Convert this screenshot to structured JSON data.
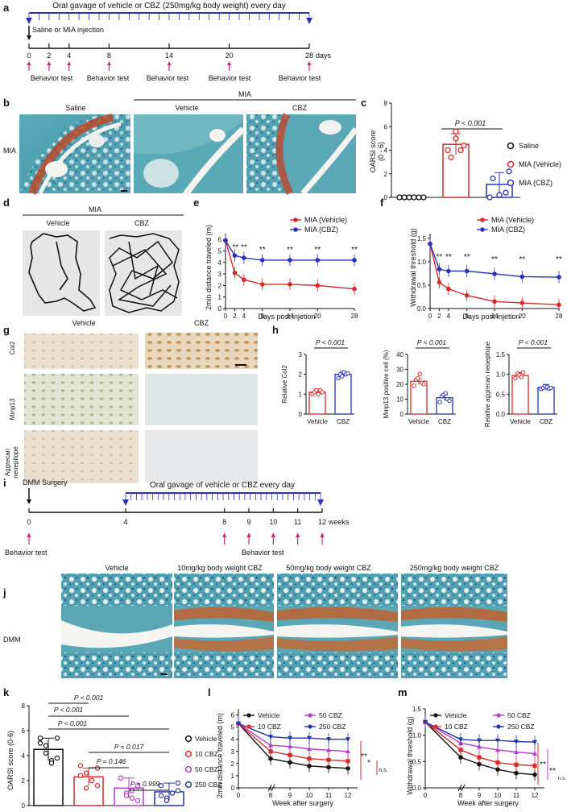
{
  "panels": {
    "a": "a",
    "b": "b",
    "c": "c",
    "d": "d",
    "e": "e",
    "f": "f",
    "g": "g",
    "h": "h",
    "i": "i",
    "j": "j",
    "k": "k",
    "l": "l",
    "m": "m"
  },
  "a": {
    "gavage": "Oral gavage  of vehicle or CBZ (250mg/kg body weight) every day",
    "injection": "Saline or MIA injection",
    "days": [
      "0",
      "2",
      "4",
      "8",
      "14",
      "20",
      "28"
    ],
    "unit": "days",
    "behavior": [
      "Behavior test",
      "Behavior test",
      "Behavior test",
      "Behavior test",
      "Behavior test"
    ]
  },
  "b": {
    "mia": "MIA",
    "saline": "Saline",
    "vehicle": "Vehicle",
    "cbz": "CBZ",
    "row": "MIA"
  },
  "c": {
    "ylabel": "OARSI score",
    "ylabel2": "(0 - 6)",
    "yticks": [
      "0",
      "2",
      "4",
      "6",
      "8"
    ],
    "pval": "P < 0.001",
    "legend": [
      "Saline",
      "MIA (Vehicle)",
      "MIA (CBZ)"
    ],
    "chart_data": {
      "type": "bar",
      "categories": [
        "Saline",
        "MIA (Vehicle)",
        "MIA (CBZ)"
      ],
      "values": [
        0,
        4.5,
        1.1
      ],
      "errors": [
        0,
        0.9,
        1.0
      ],
      "ylim": [
        0,
        8
      ]
    }
  },
  "d": {
    "title": "MIA",
    "vehicle": "Vehicle",
    "cbz": "CBZ"
  },
  "e": {
    "ylabel": "2min distance traveled  (m)",
    "xlabel": "Days post injetion",
    "yticks": [
      "0",
      "1",
      "2",
      "3",
      "4",
      "5",
      "6"
    ],
    "xticks": [
      "0",
      "2",
      "4",
      "8",
      "14",
      "20",
      "28"
    ],
    "legend": [
      "MIA (Vehicle)",
      "MIA (CBZ)"
    ],
    "sig": [
      "**",
      "**",
      "**",
      "**",
      "**",
      "**"
    ],
    "chart_data": {
      "type": "line",
      "x": [
        0,
        2,
        4,
        8,
        14,
        20,
        28
      ],
      "series": [
        {
          "name": "MIA (Vehicle)",
          "values": [
            5.9,
            3.1,
            2.5,
            2.1,
            2.1,
            2.0,
            1.7
          ]
        },
        {
          "name": "MIA (CBZ)",
          "values": [
            5.9,
            4.6,
            4.4,
            4.2,
            4.2,
            4.2,
            4.2
          ]
        }
      ],
      "ylim": [
        0,
        6.5
      ]
    }
  },
  "f": {
    "ylabel": "Withdrawal threshold (g)",
    "xlabel": "Days post injetion",
    "yticks": [
      "0.0",
      "0.5",
      "1.0",
      "1.5"
    ],
    "xticks": [
      "0",
      "2",
      "4",
      "8",
      "14",
      "20",
      "28"
    ],
    "legend": [
      "MIA (Vehicle)",
      "MIA (CBZ)"
    ],
    "sig": [
      "**",
      "**",
      "**",
      "**",
      "**",
      "**"
    ],
    "chart_data": {
      "type": "line",
      "x": [
        0,
        2,
        4,
        8,
        14,
        20,
        28
      ],
      "series": [
        {
          "name": "MIA (Vehicle)",
          "values": [
            1.38,
            0.56,
            0.42,
            0.28,
            0.15,
            0.12,
            0.08
          ]
        },
        {
          "name": "MIA (CBZ)",
          "values": [
            1.38,
            0.84,
            0.8,
            0.8,
            0.74,
            0.68,
            0.67
          ]
        }
      ],
      "ylim": [
        0,
        1.6
      ]
    }
  },
  "g": {
    "vehicle": "Vehicle",
    "cbz": "CBZ",
    "rows": [
      "Col2",
      "Mmp13",
      "Aggrecan",
      "neoepitope"
    ]
  },
  "h": {
    "plots": [
      {
        "ylabel": "Relative Col2",
        "yticks": [
          "0",
          "1",
          "2",
          "3"
        ],
        "pval": "P < 0.001",
        "xcats": [
          "Vehicle",
          "CBZ"
        ],
        "chart_data": {
          "type": "bar",
          "categories": [
            "Vehicle",
            "CBZ"
          ],
          "values": [
            1.1,
            2.0
          ],
          "ylim": [
            0,
            3
          ]
        }
      },
      {
        "ylabel": "Mmp13 positive cell (%)",
        "yticks": [
          "0",
          "10",
          "20",
          "30",
          "40"
        ],
        "pval": "P < 0.001",
        "xcats": [
          "Vehicle",
          "CBZ"
        ],
        "chart_data": {
          "type": "bar",
          "categories": [
            "Vehicle",
            "CBZ"
          ],
          "values": [
            22,
            11
          ],
          "ylim": [
            0,
            40
          ]
        }
      },
      {
        "ylabel": "Relative aggrecan neoepitope",
        "yticks": [
          "0.0",
          "0.5",
          "1.0",
          "1.5"
        ],
        "pval": "P < 0.001",
        "xcats": [
          "Vehicle",
          "CBZ"
        ],
        "chart_data": {
          "type": "bar",
          "categories": [
            "Vehicle",
            "CBZ"
          ],
          "values": [
            0.97,
            0.67
          ],
          "ylim": [
            0,
            1.5
          ]
        }
      }
    ]
  },
  "i": {
    "surgery": "DMM Surgery",
    "gavage": "Oral gavage of vehicle or CBZ every day",
    "weeks": [
      "0",
      "4",
      "8",
      "9",
      "10",
      "11",
      "12"
    ],
    "unit": "weeks",
    "behavior": [
      "Behavior test",
      "Behavior test"
    ]
  },
  "j": {
    "cols": [
      "Vehicle",
      "10mg/kg body weight CBZ",
      "50mg/kg body weight CBZ",
      "250mg/kg body weight CBZ"
    ],
    "row": "DMM"
  },
  "k": {
    "ylabel": "OARSI score (0-6)",
    "yticks": [
      "0",
      "2",
      "4",
      "6",
      "8"
    ],
    "pvals": [
      "P < 0.001",
      "P < 0.001",
      "P < 0.001",
      "P = 0.017",
      "P = 0.146",
      "P > 0.999"
    ],
    "legend": [
      "Vehicle",
      "10 CBZ",
      "50 CBZ",
      "250 CBZ"
    ],
    "chart_data": {
      "type": "bar",
      "categories": [
        "Vehicle",
        "10 CBZ",
        "50 CBZ",
        "250 CBZ"
      ],
      "values": [
        4.5,
        2.3,
        1.4,
        1.1
      ],
      "errors": [
        0.9,
        0.7,
        0.8,
        0.7
      ],
      "ylim": [
        0,
        8
      ]
    }
  },
  "l": {
    "ylabel": "2min distance traveled  (m)",
    "xlabel": "Week after surgery",
    "yticks": [
      "0",
      "1",
      "2",
      "3",
      "4",
      "5",
      "6"
    ],
    "xticks": [
      "0",
      "8",
      "9",
      "10",
      "11",
      "12"
    ],
    "legend": [
      "Vehicle",
      "10 CBZ",
      "50 CBZ",
      "250 CBZ"
    ],
    "sig": [
      "**",
      "*",
      "n.s."
    ],
    "chart_data": {
      "type": "line",
      "x": [
        0,
        8,
        9,
        10,
        11,
        12
      ],
      "series": [
        {
          "name": "Vehicle",
          "values": [
            5.3,
            2.4,
            2.1,
            1.8,
            1.7,
            1.6
          ]
        },
        {
          "name": "10 CBZ",
          "values": [
            5.3,
            3.0,
            2.7,
            2.4,
            2.3,
            2.2
          ]
        },
        {
          "name": "50 CBZ",
          "values": [
            5.3,
            3.5,
            3.4,
            3.2,
            3.1,
            3.0
          ]
        },
        {
          "name": "250 CBZ",
          "values": [
            5.3,
            4.2,
            4.1,
            4.1,
            4.0,
            4.0
          ]
        }
      ],
      "ylim": [
        0,
        6.5
      ]
    }
  },
  "m": {
    "ylabel": "Withdrawal threshold (g)",
    "xlabel": "Week after surgery",
    "yticks": [
      "0.0",
      "0.5",
      "1.0",
      "1.5"
    ],
    "xticks": [
      "0",
      "8",
      "9",
      "10",
      "11",
      "12"
    ],
    "legend": [
      "Vehicle",
      "10 CBZ",
      "50 CBZ",
      "250 CBZ"
    ],
    "sig": [
      "**",
      "**",
      "n.s."
    ],
    "chart_data": {
      "type": "line",
      "x": [
        0,
        8,
        9,
        10,
        11,
        12
      ],
      "series": [
        {
          "name": "Vehicle",
          "values": [
            1.25,
            0.58,
            0.45,
            0.35,
            0.28,
            0.25
          ]
        },
        {
          "name": "10 CBZ",
          "values": [
            1.25,
            0.72,
            0.58,
            0.48,
            0.44,
            0.42
          ]
        },
        {
          "name": "50 CBZ",
          "values": [
            1.25,
            0.85,
            0.78,
            0.72,
            0.68,
            0.65
          ]
        },
        {
          "name": "250 CBZ",
          "values": [
            1.25,
            0.92,
            0.9,
            0.9,
            0.88,
            0.87
          ]
        }
      ],
      "ylim": [
        0,
        1.5
      ]
    }
  },
  "colors": {
    "red": "#d42a2a",
    "blue": "#2a33b8",
    "black": "#111111",
    "magenta": "#b43cc8",
    "navy": "#2035a8",
    "arrow": "#c8287e"
  }
}
